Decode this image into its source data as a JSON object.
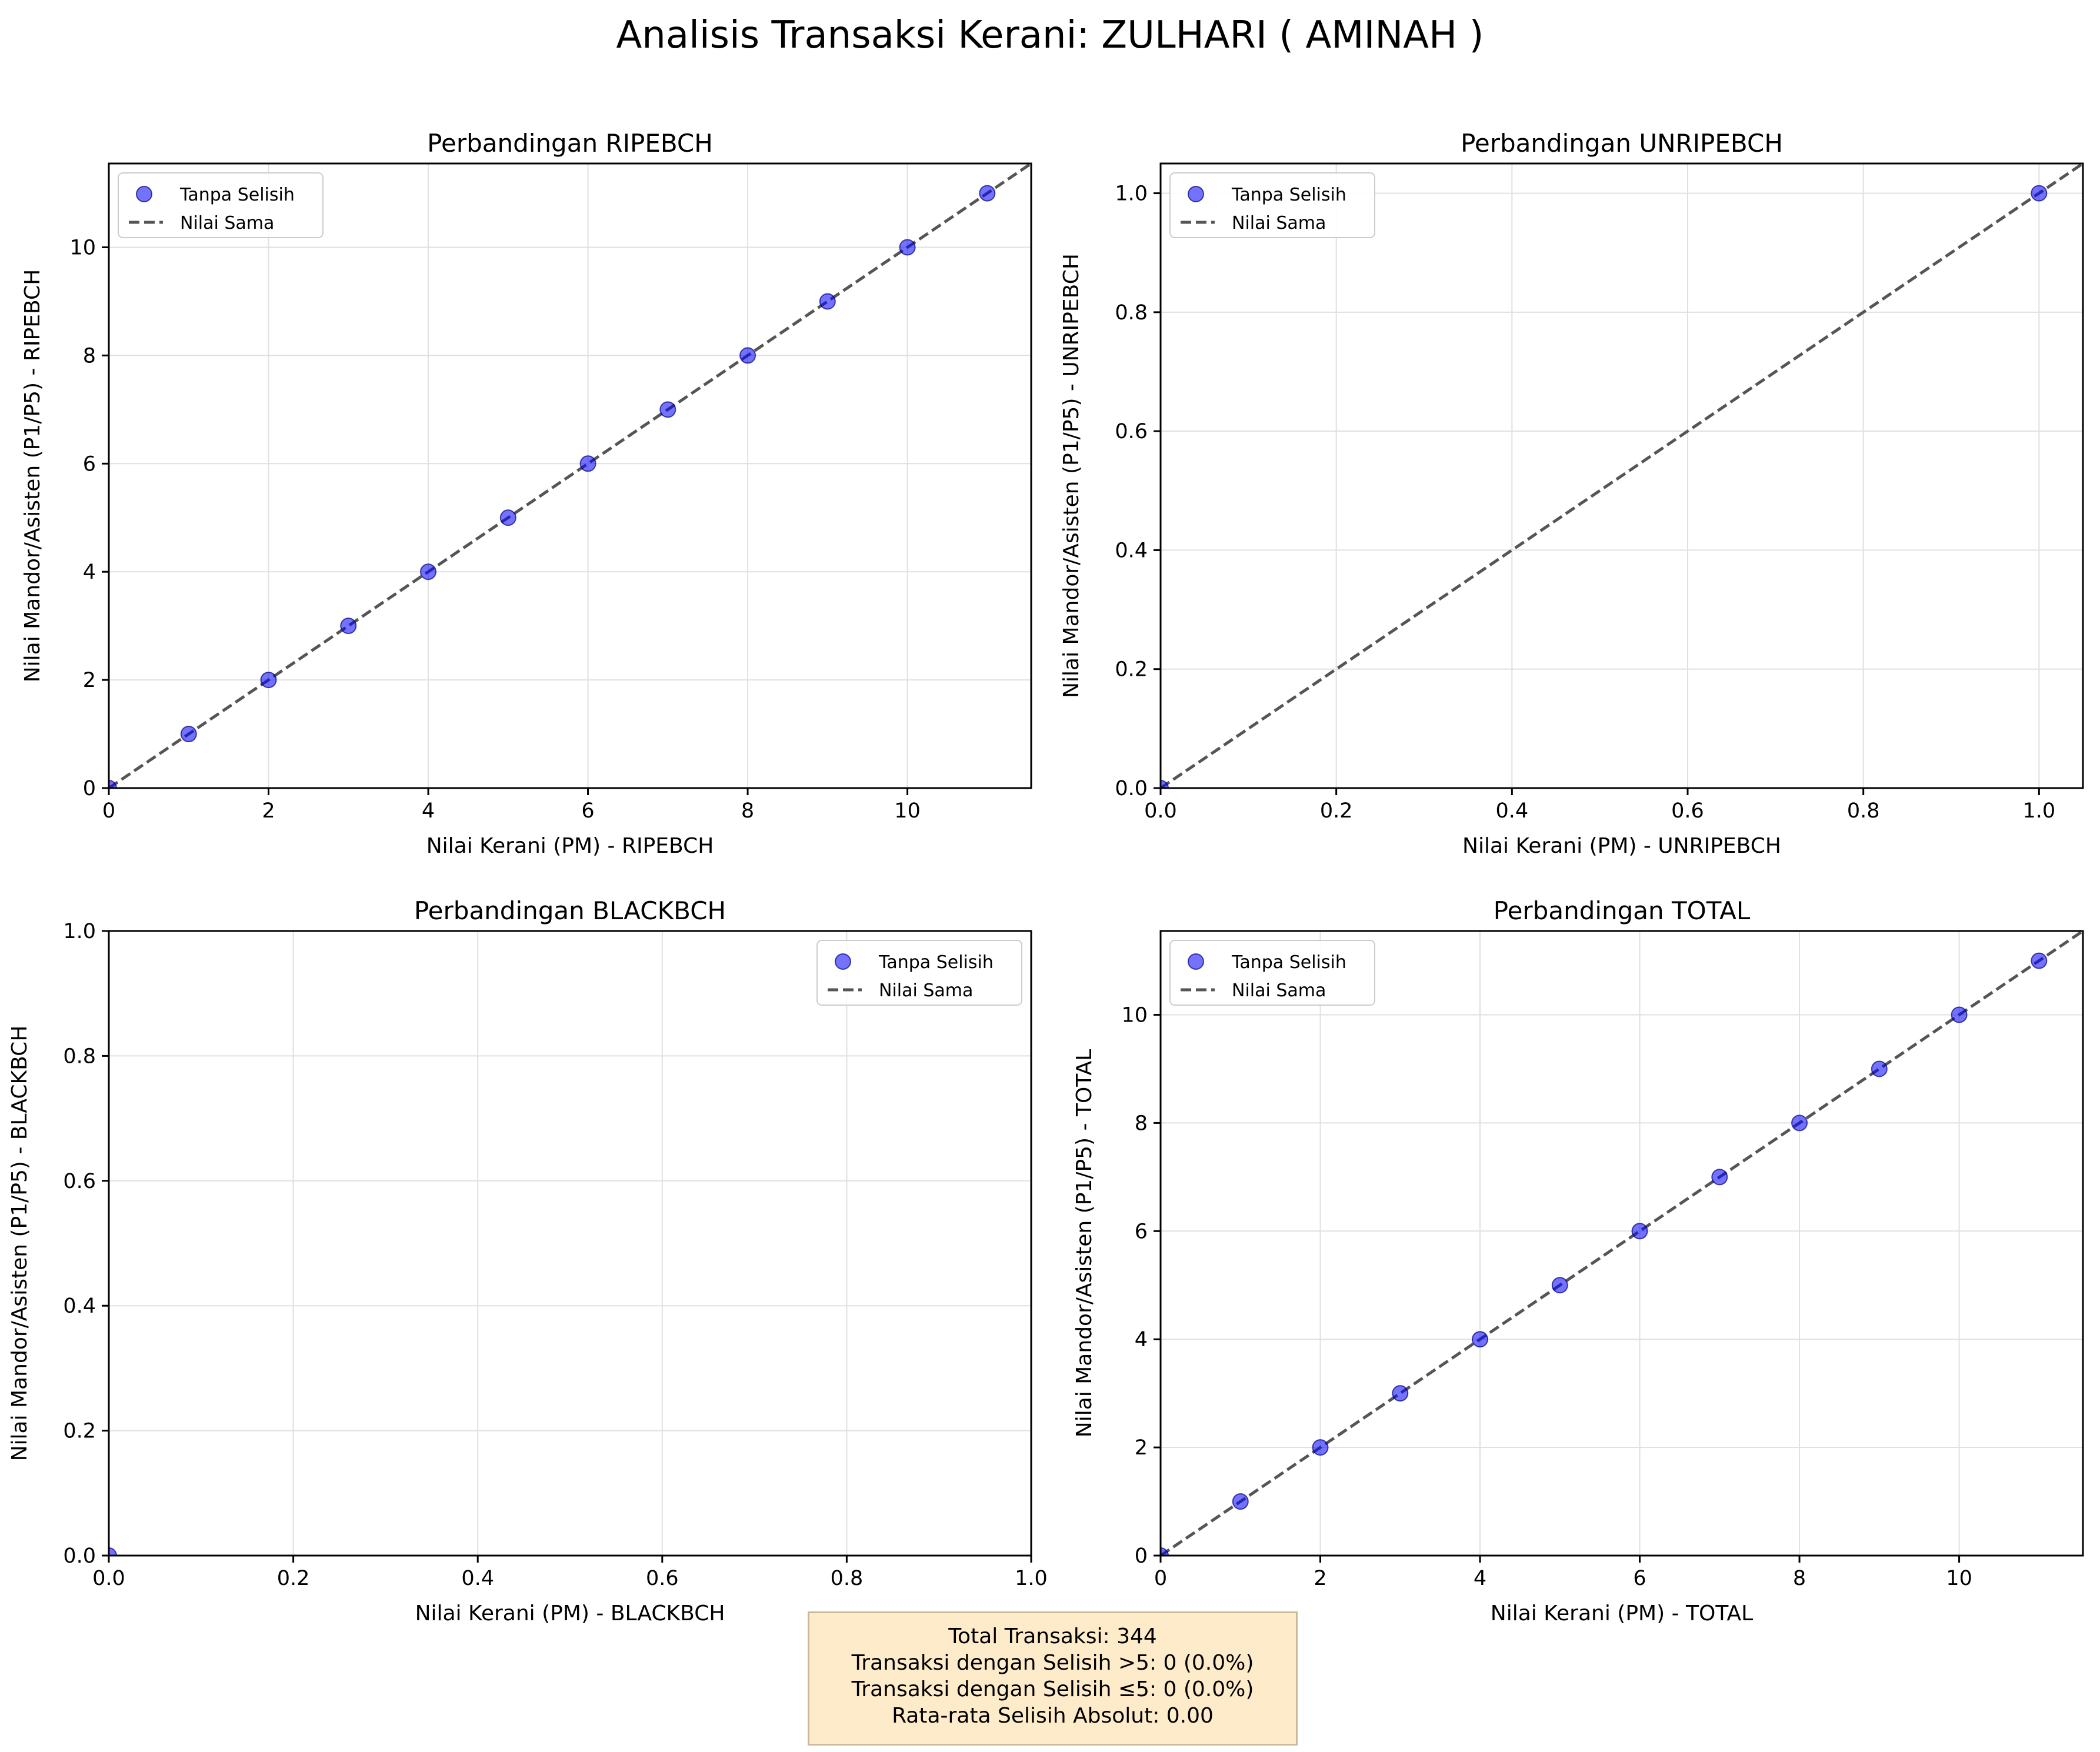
{
  "figure": {
    "title": "Analisis Transaksi Kerani: ZULHARI ( AMINAH )"
  },
  "colors": {
    "point": "#0000ff",
    "point_edge": "#000080",
    "diagonal": "#555555",
    "grid": "#e0e0e0",
    "stats_bg": "#fdebc9"
  },
  "legend_labels": [
    "Tanpa Selisih",
    "Nilai Sama"
  ],
  "chart_data": [
    {
      "type": "scatter",
      "title": "Perbandingan RIPEBCH",
      "xlabel": "Nilai Kerani (PM) - RIPEBCH",
      "ylabel": "Nilai Mandor/Asisten (P1/P5) - RIPEBCH",
      "xlim": [
        0,
        11.55
      ],
      "ylim": [
        0,
        11.55
      ],
      "xticks": [
        0,
        2,
        4,
        6,
        8,
        10
      ],
      "yticks": [
        0,
        2,
        4,
        6,
        8,
        10
      ],
      "tick_format": "int",
      "grid": true,
      "legend_position": "upper left",
      "series": [
        {
          "name": "Tanpa Selisih",
          "x": [
            0,
            1,
            2,
            3,
            4,
            5,
            6,
            7,
            8,
            9,
            10,
            11
          ],
          "y": [
            0,
            1,
            2,
            3,
            4,
            5,
            6,
            7,
            8,
            9,
            10,
            11
          ]
        }
      ],
      "reference_line": {
        "name": "Nilai Sama",
        "from": [
          0,
          0
        ],
        "to": [
          11.55,
          11.55
        ],
        "style": "dashed"
      }
    },
    {
      "type": "scatter",
      "title": "Perbandingan UNRIPEBCH",
      "xlabel": "Nilai Kerani (PM) - UNRIPEBCH",
      "ylabel": "Nilai Mandor/Asisten (P1/P5) - UNRIPEBCH",
      "xlim": [
        0,
        1.05
      ],
      "ylim": [
        0,
        1.05
      ],
      "xticks": [
        0,
        0.2,
        0.4,
        0.6,
        0.8,
        1.0
      ],
      "yticks": [
        0,
        0.2,
        0.4,
        0.6,
        0.8,
        1.0
      ],
      "tick_format": "1dp",
      "grid": true,
      "legend_position": "upper left",
      "series": [
        {
          "name": "Tanpa Selisih",
          "x": [
            0,
            1
          ],
          "y": [
            0,
            1
          ]
        }
      ],
      "reference_line": {
        "name": "Nilai Sama",
        "from": [
          0,
          0
        ],
        "to": [
          1.05,
          1.05
        ],
        "style": "dashed"
      }
    },
    {
      "type": "scatter",
      "title": "Perbandingan BLACKBCH",
      "xlabel": "Nilai Kerani (PM) - BLACKBCH",
      "ylabel": "Nilai Mandor/Asisten (P1/P5) - BLACKBCH",
      "xlim": [
        0,
        1
      ],
      "ylim": [
        0,
        1
      ],
      "xticks": [
        0,
        0.2,
        0.4,
        0.6,
        0.8,
        1.0
      ],
      "yticks": [
        0,
        0.2,
        0.4,
        0.6,
        0.8,
        1.0
      ],
      "tick_format": "1dp",
      "grid": true,
      "legend_position": "upper right",
      "series": [
        {
          "name": "Tanpa Selisih",
          "x": [
            0
          ],
          "y": [
            0
          ]
        }
      ],
      "reference_line": {
        "name": "Nilai Sama",
        "from": [
          0,
          0
        ],
        "to": [
          0,
          0
        ],
        "style": "dashed"
      }
    },
    {
      "type": "scatter",
      "title": "Perbandingan TOTAL",
      "xlabel": "Nilai Kerani (PM) - TOTAL",
      "ylabel": "Nilai Mandor/Asisten (P1/P5) - TOTAL",
      "xlim": [
        0,
        11.55
      ],
      "ylim": [
        0,
        11.55
      ],
      "xticks": [
        0,
        2,
        4,
        6,
        8,
        10
      ],
      "yticks": [
        0,
        2,
        4,
        6,
        8,
        10
      ],
      "tick_format": "int",
      "grid": true,
      "legend_position": "upper left",
      "series": [
        {
          "name": "Tanpa Selisih",
          "x": [
            0,
            1,
            2,
            3,
            4,
            5,
            6,
            7,
            8,
            9,
            10,
            11
          ],
          "y": [
            0,
            1,
            2,
            3,
            4,
            5,
            6,
            7,
            8,
            9,
            10,
            11
          ]
        }
      ],
      "reference_line": {
        "name": "Nilai Sama",
        "from": [
          0,
          0
        ],
        "to": [
          11.55,
          11.55
        ],
        "style": "dashed"
      }
    }
  ],
  "stats": {
    "total": "Total Transaksi: 344",
    "above5": "Transaksi dengan Selisih >5: 0 (0.0%)",
    "below5": "Transaksi dengan Selisih ≤5: 0 (0.0%)",
    "mean_abs": "Rata-rata Selisih Absolut: 0.00"
  }
}
